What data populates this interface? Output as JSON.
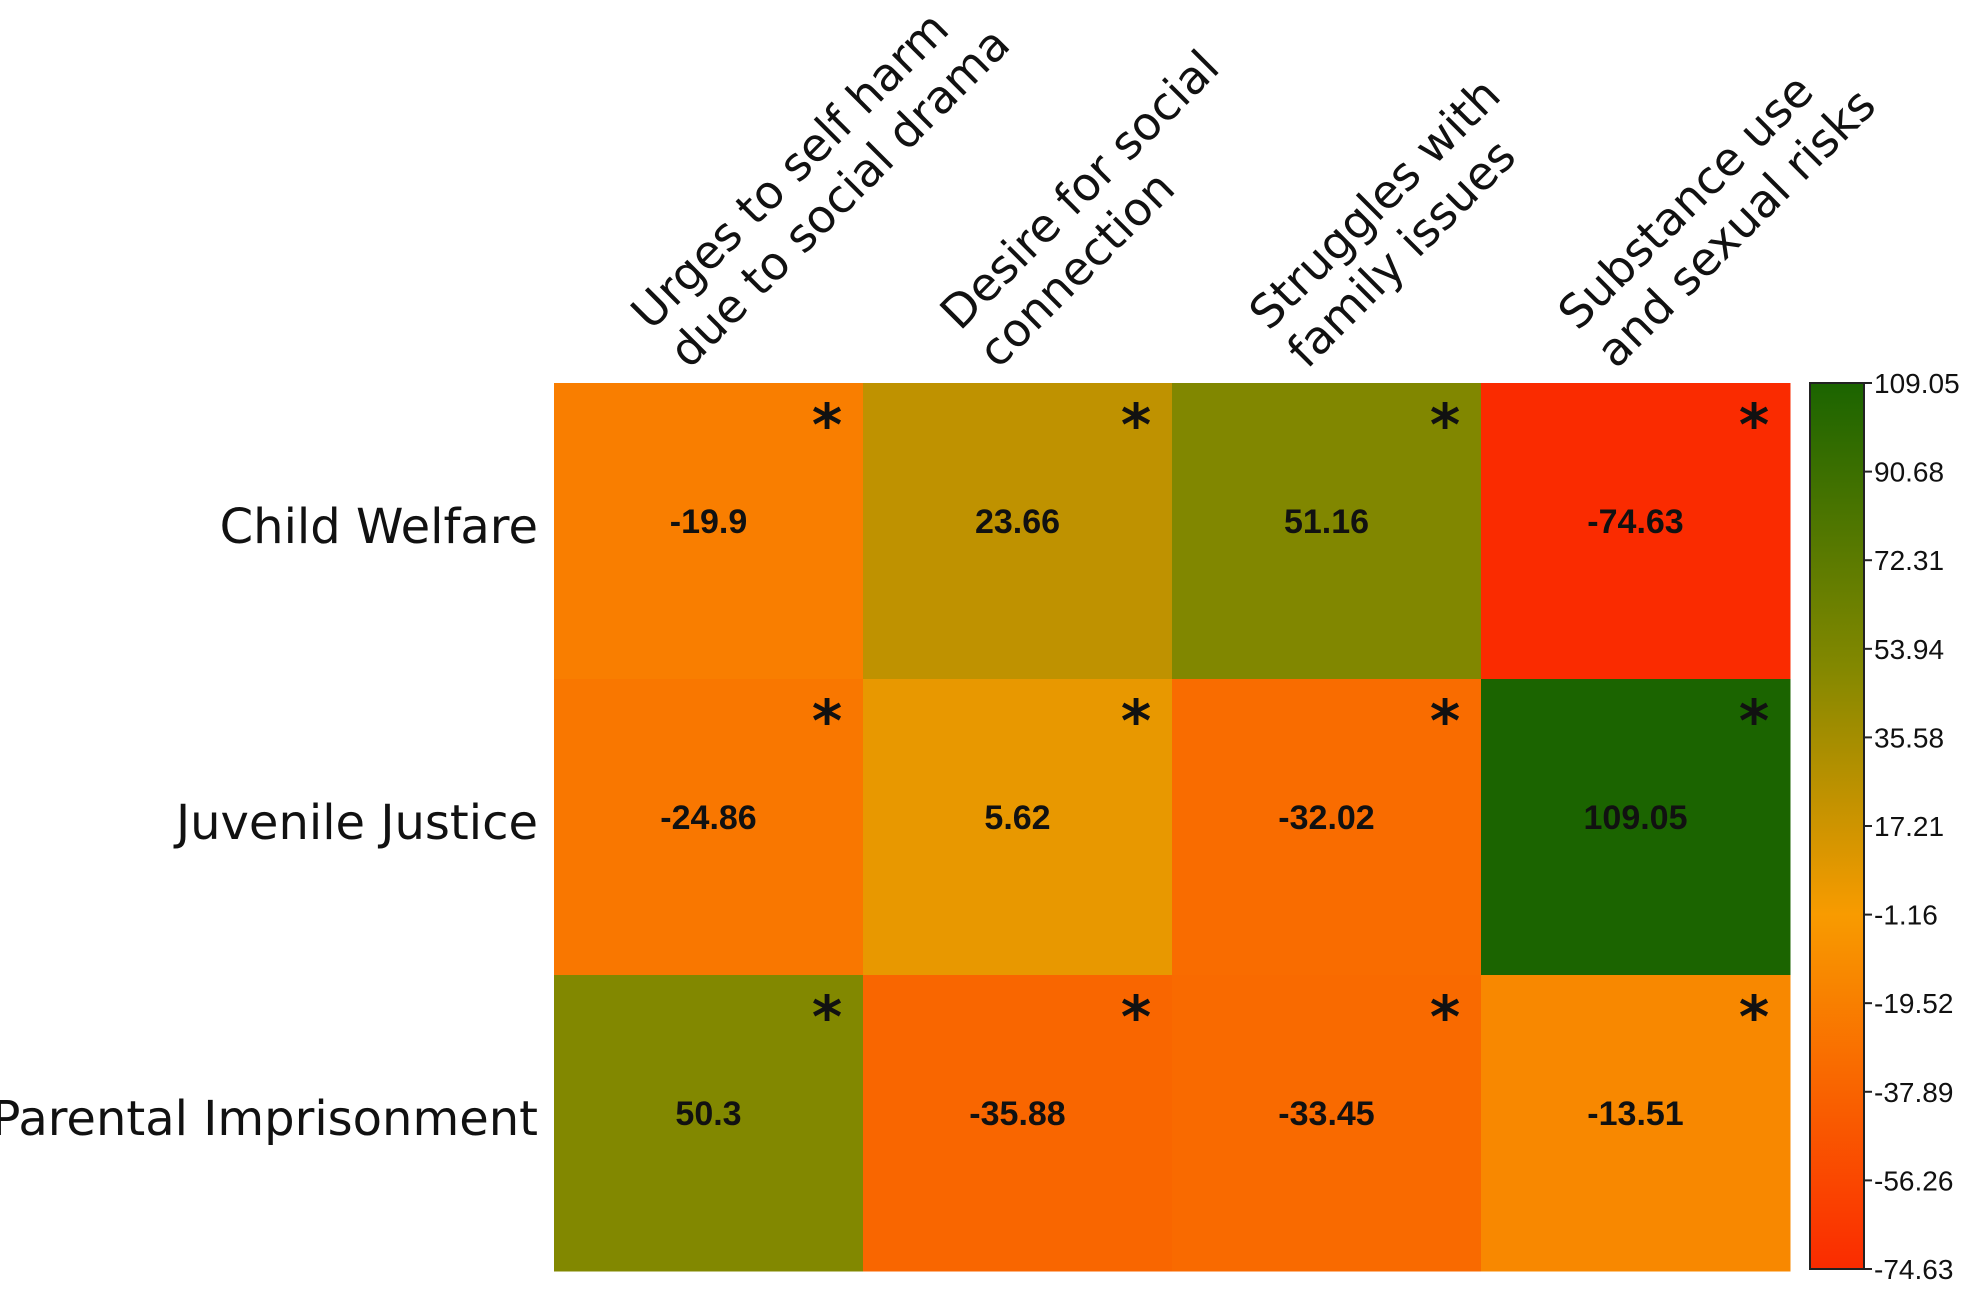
{
  "chart_data": {
    "type": "heatmap",
    "rows": [
      "Child Welfare",
      "Juvenile Justice ",
      "Parental Imprisonment"
    ],
    "columns": [
      [
        "Urges to self harm",
        "due to social drama"
      ],
      [
        "Desire   for   social",
        "connection"
      ],
      [
        "Struggles with",
        "family issues"
      ],
      [
        "Substance use",
        "and sexual risks"
      ]
    ],
    "values": [
      [
        -19.9,
        23.66,
        51.16,
        -74.63
      ],
      [
        -24.86,
        5.62,
        -32.02,
        109.05
      ],
      [
        50.3,
        -35.88,
        -33.45,
        -13.51
      ]
    ],
    "value_labels": [
      [
        "-19.9",
        "23.66",
        "51.16",
        "-74.63"
      ],
      [
        "-24.86",
        "5.62",
        "-32.02",
        "109.05"
      ],
      [
        "50.3",
        "-35.88",
        "-33.45",
        "-13.51"
      ]
    ],
    "significance_marker": "*",
    "significant": [
      [
        true,
        true,
        true,
        true
      ],
      [
        true,
        true,
        true,
        true
      ],
      [
        true,
        true,
        true,
        true
      ]
    ],
    "colorbar": {
      "min": -74.63,
      "max": 109.05,
      "ticks": [
        109.05,
        90.68,
        72.31,
        53.94,
        35.58,
        17.21,
        -1.16,
        -19.52,
        -37.89,
        -56.26,
        -74.63
      ],
      "tick_labels": [
        "109.05",
        "90.68",
        "72.31",
        "53.94",
        "35.58",
        "17.21",
        "-1.16",
        "-19.52",
        "-37.89",
        "-56.26",
        "-74.63"
      ],
      "color_stops": [
        {
          "value": -74.63,
          "color": "#fa2b00"
        },
        {
          "value": -1.16,
          "color": "#f89b00"
        },
        {
          "value": 50.0,
          "color": "#838800"
        },
        {
          "value": 109.05,
          "color": "#1b6400"
        }
      ]
    }
  }
}
